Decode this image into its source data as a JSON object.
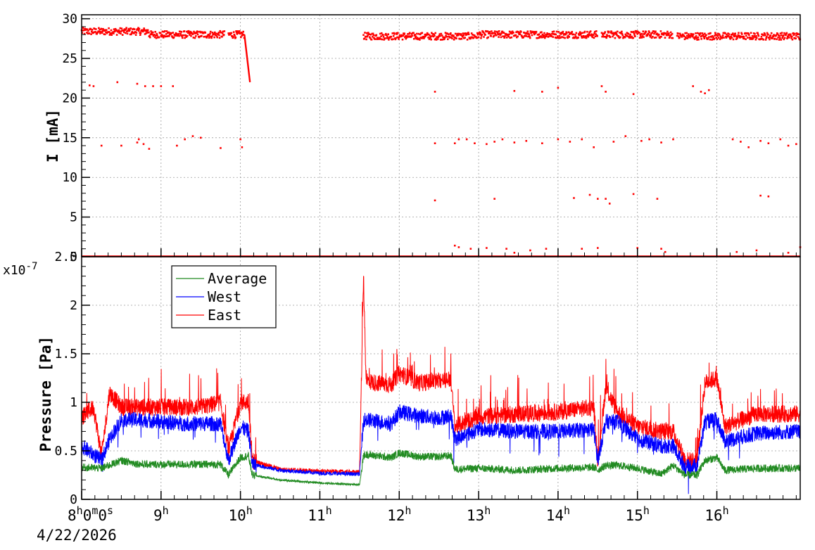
{
  "chart_data": [
    {
      "type": "scatter",
      "panel": "current",
      "ylabel": "I [mA]",
      "ylim": [
        0,
        30.5
      ],
      "yticks": [
        "0",
        "5",
        "10",
        "15",
        "20",
        "25",
        "30"
      ],
      "xlim_hours": [
        8.0,
        17.05
      ],
      "grid": true,
      "series": [
        {
          "color": "#ff0000",
          "segments": [
            {
              "x_range": [
                8.0,
                8.85
              ],
              "level": 28.4
            },
            {
              "x_range": [
                8.85,
                9.8
              ],
              "level": 28.0
            },
            {
              "x_range": [
                9.85,
                10.05
              ],
              "level": 28.0
            },
            {
              "x_range": [
                11.55,
                13.0
              ],
              "level": 27.8
            },
            {
              "x_range": [
                13.0,
                14.5
              ],
              "level": 28.0
            },
            {
              "x_range": [
                14.55,
                15.45
              ],
              "level": 28.0
            },
            {
              "x_range": [
                15.5,
                17.05
              ],
              "level": 27.8
            }
          ],
          "decay": {
            "x": [
              10.05,
              10.12
            ],
            "y": [
              28.0,
              22.0
            ]
          },
          "zero_line": {
            "x_range": [
              8.0,
              17.05
            ],
            "y": 0.0
          },
          "outliers_22mA": [
            [
              8.1,
              21.6
            ],
            [
              8.15,
              21.5
            ],
            [
              8.45,
              22.0
            ],
            [
              8.7,
              21.8
            ],
            [
              8.8,
              21.5
            ],
            [
              8.9,
              21.5
            ],
            [
              9.0,
              21.5
            ],
            [
              9.15,
              21.5
            ],
            [
              12.45,
              20.8
            ],
            [
              13.45,
              20.9
            ],
            [
              13.8,
              20.8
            ],
            [
              14.0,
              21.3
            ],
            [
              14.55,
              21.5
            ],
            [
              14.6,
              20.8
            ],
            [
              14.95,
              20.5
            ],
            [
              15.7,
              21.5
            ],
            [
              15.8,
              20.8
            ],
            [
              15.85,
              20.6
            ],
            [
              15.9,
              21.0
            ]
          ],
          "outliers_14mA": [
            [
              8.25,
              14.0
            ],
            [
              8.5,
              14.0
            ],
            [
              8.7,
              14.4
            ],
            [
              8.72,
              14.8
            ],
            [
              8.78,
              14.2
            ],
            [
              8.85,
              13.6
            ],
            [
              9.2,
              14.0
            ],
            [
              9.3,
              14.8
            ],
            [
              9.4,
              15.2
            ],
            [
              9.5,
              15.0
            ],
            [
              9.75,
              13.7
            ],
            [
              10.0,
              14.8
            ],
            [
              10.02,
              13.8
            ],
            [
              12.45,
              14.3
            ],
            [
              12.7,
              14.3
            ],
            [
              12.75,
              14.8
            ],
            [
              12.85,
              14.8
            ],
            [
              12.95,
              14.3
            ],
            [
              13.1,
              14.2
            ],
            [
              13.2,
              14.5
            ],
            [
              13.3,
              14.8
            ],
            [
              13.45,
              14.4
            ],
            [
              13.6,
              14.6
            ],
            [
              13.8,
              14.3
            ],
            [
              14.0,
              14.8
            ],
            [
              14.15,
              14.5
            ],
            [
              14.3,
              14.8
            ],
            [
              14.45,
              13.8
            ],
            [
              14.7,
              14.5
            ],
            [
              14.85,
              15.2
            ],
            [
              15.05,
              14.6
            ],
            [
              15.15,
              14.8
            ],
            [
              15.3,
              14.4
            ],
            [
              15.45,
              14.8
            ],
            [
              16.2,
              14.8
            ],
            [
              16.3,
              14.5
            ],
            [
              16.4,
              13.8
            ],
            [
              16.55,
              14.6
            ],
            [
              16.65,
              14.3
            ],
            [
              16.8,
              14.8
            ],
            [
              16.9,
              14.0
            ],
            [
              17.0,
              14.2
            ]
          ],
          "outliers_7mA": [
            [
              12.45,
              7.1
            ],
            [
              13.2,
              7.3
            ],
            [
              14.2,
              7.4
            ],
            [
              14.4,
              7.8
            ],
            [
              14.5,
              7.3
            ],
            [
              14.6,
              7.3
            ],
            [
              14.65,
              6.7
            ],
            [
              14.95,
              7.9
            ],
            [
              15.25,
              7.3
            ],
            [
              16.55,
              7.7
            ],
            [
              16.65,
              7.6
            ]
          ],
          "outliers_low": [
            [
              12.7,
              1.4
            ],
            [
              12.75,
              1.2
            ],
            [
              12.9,
              1.0
            ],
            [
              13.1,
              1.1
            ],
            [
              13.35,
              1.0
            ],
            [
              13.45,
              0.5
            ],
            [
              13.65,
              0.8
            ],
            [
              13.85,
              1.0
            ],
            [
              14.3,
              1.0
            ],
            [
              14.5,
              1.1
            ],
            [
              15.0,
              1.1
            ],
            [
              15.3,
              1.0
            ],
            [
              15.35,
              0.6
            ],
            [
              16.25,
              0.6
            ],
            [
              16.5,
              0.8
            ],
            [
              16.9,
              0.5
            ],
            [
              17.05,
              1.2
            ]
          ]
        }
      ]
    },
    {
      "type": "line",
      "panel": "pressure",
      "ylabel": "Pressure [Pa]",
      "y_multiplier": "x10",
      "y_multiplier_exp": "-7",
      "ylim": [
        0,
        2.5
      ],
      "yticks": [
        "0",
        "0.5",
        "1",
        "1.5",
        "2",
        "2.5"
      ],
      "xlim_hours": [
        8.0,
        17.05
      ],
      "grid": true,
      "legend_position": "top-left",
      "series": [
        {
          "name": "Average",
          "color": "#228b22",
          "x": [
            8.0,
            8.25,
            8.5,
            8.75,
            9.0,
            9.25,
            9.5,
            9.75,
            9.85,
            10.0,
            10.1,
            10.15,
            10.5,
            11.0,
            11.5,
            11.55,
            11.6,
            11.9,
            12.0,
            12.25,
            12.5,
            12.65,
            12.7,
            13.0,
            13.5,
            14.0,
            14.45,
            14.5,
            14.6,
            14.75,
            15.0,
            15.3,
            15.45,
            15.6,
            15.75,
            15.85,
            16.0,
            16.1,
            16.5,
            17.0
          ],
          "y": [
            0.33,
            0.32,
            0.4,
            0.36,
            0.36,
            0.36,
            0.36,
            0.36,
            0.25,
            0.43,
            0.45,
            0.25,
            0.2,
            0.17,
            0.15,
            0.45,
            0.46,
            0.43,
            0.48,
            0.44,
            0.44,
            0.45,
            0.31,
            0.32,
            0.3,
            0.32,
            0.33,
            0.3,
            0.35,
            0.35,
            0.32,
            0.26,
            0.35,
            0.25,
            0.25,
            0.4,
            0.43,
            0.3,
            0.32,
            0.32
          ]
        },
        {
          "name": "West",
          "color": "#0000ff",
          "x": [
            8.0,
            8.25,
            8.35,
            8.5,
            8.75,
            9.0,
            9.25,
            9.5,
            9.75,
            9.85,
            10.0,
            10.1,
            10.15,
            10.5,
            11.0,
            11.5,
            11.55,
            11.6,
            11.9,
            12.0,
            12.25,
            12.5,
            12.65,
            12.7,
            13.0,
            13.5,
            14.0,
            14.45,
            14.5,
            14.6,
            14.75,
            15.0,
            15.3,
            15.45,
            15.6,
            15.75,
            15.85,
            16.0,
            16.1,
            16.5,
            17.0
          ],
          "y": [
            0.55,
            0.4,
            0.62,
            0.82,
            0.82,
            0.8,
            0.78,
            0.78,
            0.78,
            0.4,
            0.75,
            0.7,
            0.36,
            0.3,
            0.27,
            0.26,
            0.82,
            0.82,
            0.78,
            0.9,
            0.86,
            0.84,
            0.86,
            0.62,
            0.72,
            0.7,
            0.7,
            0.72,
            0.4,
            0.8,
            0.8,
            0.62,
            0.55,
            0.55,
            0.33,
            0.35,
            0.8,
            0.82,
            0.6,
            0.68,
            0.7
          ]
        },
        {
          "name": "East",
          "color": "#ff0000",
          "x": [
            8.0,
            8.15,
            8.25,
            8.35,
            8.5,
            8.75,
            9.0,
            9.25,
            9.5,
            9.75,
            9.85,
            10.0,
            10.1,
            10.15,
            10.5,
            11.0,
            11.5,
            11.55,
            11.58,
            11.6,
            11.7,
            11.9,
            12.0,
            12.25,
            12.5,
            12.65,
            12.7,
            13.0,
            13.5,
            14.0,
            14.45,
            14.5,
            14.6,
            14.75,
            15.0,
            15.3,
            15.45,
            15.6,
            15.75,
            15.85,
            16.0,
            16.1,
            16.5,
            17.0
          ],
          "y": [
            0.85,
            0.95,
            0.45,
            1.1,
            0.95,
            0.95,
            0.95,
            0.95,
            0.95,
            1.0,
            0.5,
            1.0,
            1.0,
            0.4,
            0.31,
            0.29,
            0.28,
            2.3,
            1.3,
            1.22,
            1.2,
            1.18,
            1.3,
            1.2,
            1.22,
            1.24,
            0.75,
            0.85,
            0.88,
            0.9,
            0.95,
            0.4,
            1.15,
            0.9,
            0.75,
            0.7,
            0.7,
            0.4,
            0.4,
            1.2,
            1.25,
            0.75,
            0.88,
            0.88
          ]
        }
      ]
    }
  ],
  "x_axis": {
    "ticks": [
      {
        "h": 8,
        "base": "8",
        "rest": "0",
        "m": "m",
        "rest2": "0",
        "s": "s"
      },
      {
        "h": 9,
        "base": "9"
      },
      {
        "h": 10,
        "base": "10"
      },
      {
        "h": 11,
        "base": "11"
      },
      {
        "h": 12,
        "base": "12"
      },
      {
        "h": 13,
        "base": "13"
      },
      {
        "h": 14,
        "base": "14"
      },
      {
        "h": 15,
        "base": "15"
      },
      {
        "h": 16,
        "base": "16"
      }
    ],
    "hour_suffix": "h",
    "date_label": "4/22/2026"
  }
}
